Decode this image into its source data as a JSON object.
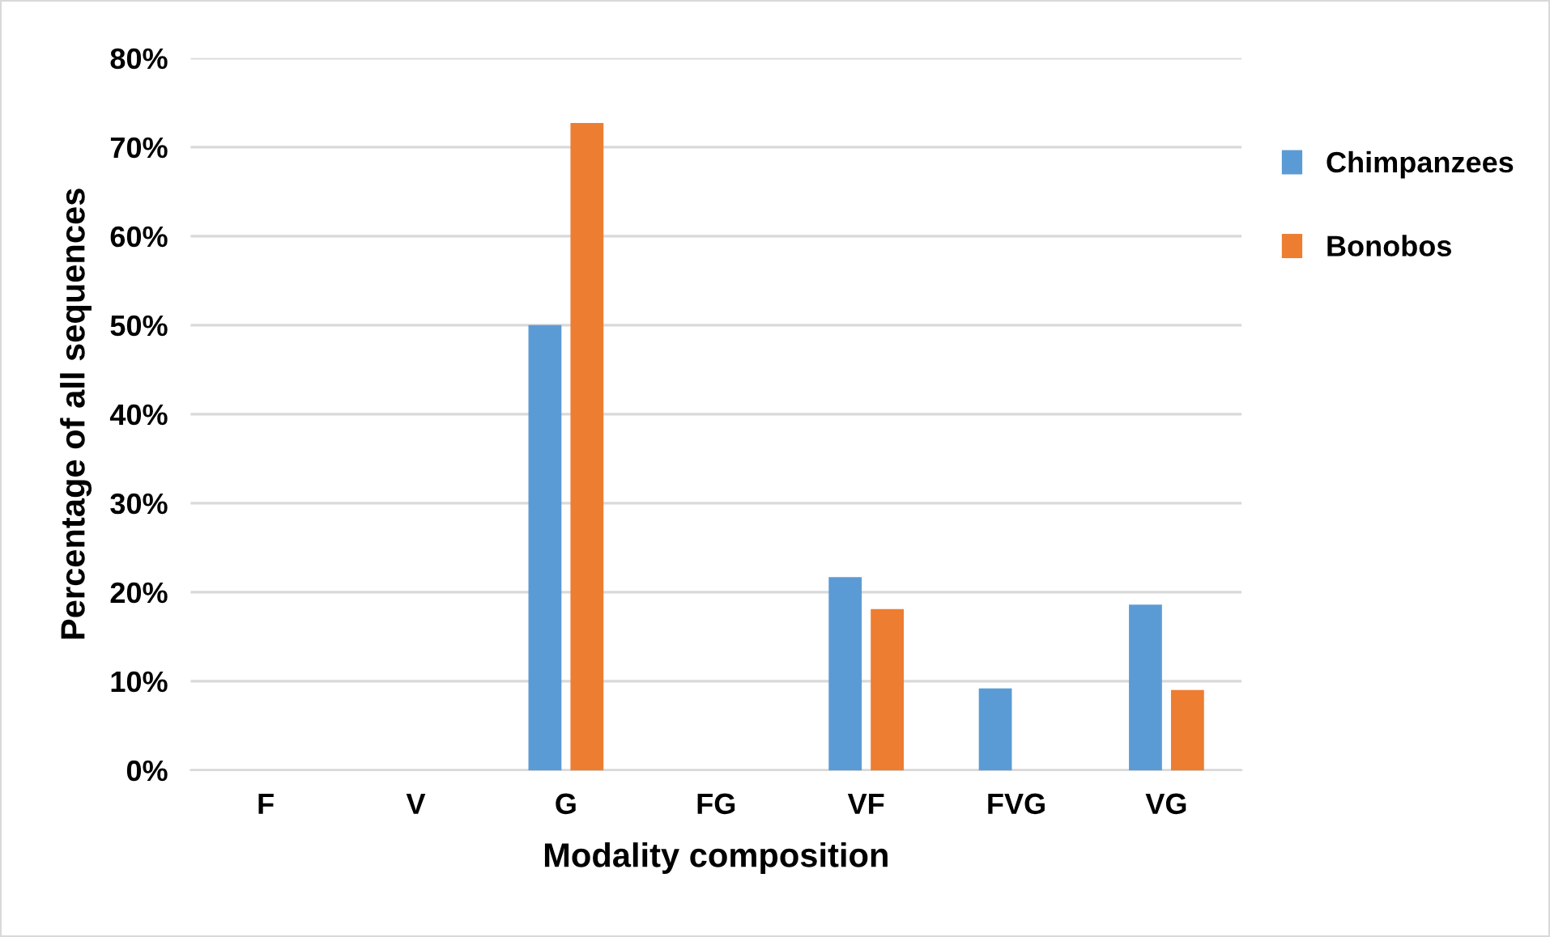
{
  "chart_data": {
    "type": "bar",
    "xlabel": "Modality composition",
    "ylabel": "Percentage of all sequences",
    "categories": [
      "F",
      "V",
      "G",
      "FG",
      "VF",
      "FVG",
      "VG"
    ],
    "series": [
      {
        "name": "Chimpanzees",
        "color": "#5b9bd5",
        "values": [
          0,
          0,
          50.0,
          0,
          21.7,
          9.2,
          18.6
        ]
      },
      {
        "name": "Bonobos",
        "color": "#ed7d31",
        "values": [
          0,
          0,
          72.7,
          0,
          18.1,
          0,
          9.0
        ]
      }
    ],
    "ylim": [
      0,
      80
    ],
    "yticks": [
      {
        "value": 0,
        "label": "0%"
      },
      {
        "value": 10,
        "label": "10%"
      },
      {
        "value": 20,
        "label": "20%"
      },
      {
        "value": 30,
        "label": "30%"
      },
      {
        "value": 40,
        "label": "40%"
      },
      {
        "value": 50,
        "label": "50%"
      },
      {
        "value": 60,
        "label": "60%"
      },
      {
        "value": 70,
        "label": "70%"
      },
      {
        "value": 80,
        "label": "80%"
      }
    ],
    "grid": "y",
    "legend": "right"
  }
}
